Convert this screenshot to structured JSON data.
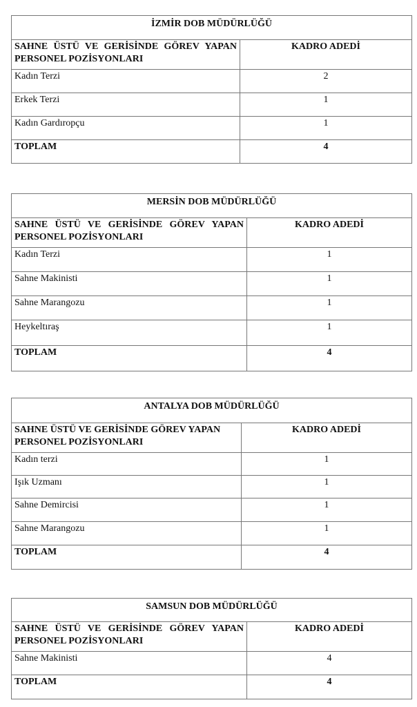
{
  "tables": [
    {
      "title": "İZMİR DOB MÜDÜRLÜĞÜ",
      "header_position": "SAHNE ÜSTÜ VE GERİSİNDE GÖREV YAPAN PERSONEL POZİSYONLARI",
      "header_count": "KADRO ADEDİ",
      "rows": [
        {
          "position": "Kadın Terzi",
          "count": "2"
        },
        {
          "position": "Erkek Terzi",
          "count": "1"
        },
        {
          "position": "Kadın Gardıropçu",
          "count": "1"
        }
      ],
      "total_label": "TOPLAM",
      "total": "4"
    },
    {
      "title": "MERSİN DOB MÜDÜRLÜĞÜ",
      "header_position": "SAHNE ÜSTÜ VE GERİSİNDE GÖREV YAPAN PERSONEL POZİSYONLARI",
      "header_count": "KADRO ADEDİ",
      "rows": [
        {
          "position": "Kadın Terzi",
          "count": "1"
        },
        {
          "position": "Sahne Makinisti",
          "count": "1"
        },
        {
          "position": "Sahne Marangozu",
          "count": "1"
        },
        {
          "position": "Heykeltıraş",
          "count": "1"
        }
      ],
      "total_label": "TOPLAM",
      "total": "4"
    },
    {
      "title": "ANTALYA DOB MÜDÜRLÜĞÜ",
      "header_position": "SAHNE ÜSTÜ VE GERİSİNDE GÖREV YAPAN PERSONEL POZİSYONLARI",
      "header_count": "KADRO ADEDİ",
      "rows": [
        {
          "position": "Kadın terzi",
          "count": "1"
        },
        {
          "position": "Işık Uzmanı",
          "count": "1"
        },
        {
          "position": "Sahne Demircisi",
          "count": "1"
        },
        {
          "position": "Sahne Marangozu",
          "count": "1"
        }
      ],
      "total_label": "TOPLAM",
      "total": "4"
    },
    {
      "title": "SAMSUN DOB MÜDÜRLÜĞÜ",
      "header_position": "SAHNE ÜSTÜ VE GERİSİNDE GÖREV YAPAN PERSONEL POZİSYONLARI",
      "header_count": "KADRO ADEDİ",
      "rows": [
        {
          "position": "Sahne Makinisti",
          "count": "4"
        }
      ],
      "total_label": "TOPLAM",
      "total": "4"
    }
  ]
}
